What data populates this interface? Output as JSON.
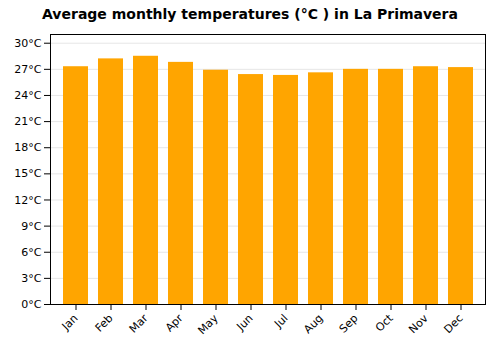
{
  "chart_data": {
    "type": "bar",
    "title": "Average monthly temperatures (°C ) in La Primavera",
    "categories": [
      "Jan",
      "Feb",
      "Mar",
      "Apr",
      "May",
      "Jun",
      "Jul",
      "Aug",
      "Sep",
      "Oct",
      "Nov",
      "Dec"
    ],
    "values": [
      27.3,
      28.2,
      28.5,
      27.8,
      26.9,
      26.4,
      26.3,
      26.6,
      27.0,
      27.0,
      27.3,
      27.2
    ],
    "color": "#FFA500",
    "ylim": [
      0,
      31
    ],
    "yticks": [
      {
        "value": 0,
        "label": "0°C"
      },
      {
        "value": 3,
        "label": "3°C"
      },
      {
        "value": 6,
        "label": "6°C"
      },
      {
        "value": 9,
        "label": "9°C"
      },
      {
        "value": 12,
        "label": "12°C"
      },
      {
        "value": 15,
        "label": "15°C"
      },
      {
        "value": 18,
        "label": "18°C"
      },
      {
        "value": 21,
        "label": "21°C"
      },
      {
        "value": 24,
        "label": "24°C"
      },
      {
        "value": 27,
        "label": "27°C"
      },
      {
        "value": 30,
        "label": "30°C"
      }
    ],
    "grid": true
  }
}
